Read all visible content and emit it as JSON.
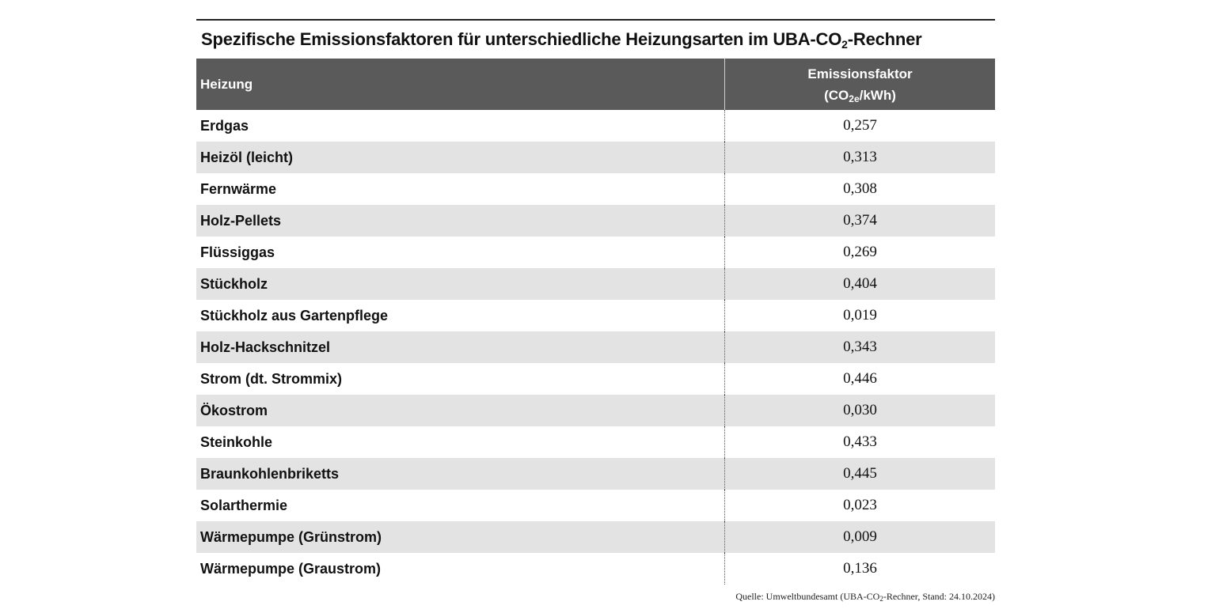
{
  "chart_data": {
    "type": "table",
    "title": "Spezifische Emissionsfaktoren für unterschiedliche Heizungsarten im UBA-CO₂-Rechner",
    "title_parts": {
      "pre": "Spezifische Emissionsfaktoren für unterschiedliche Heizungsarten im UBA-CO",
      "sub": "2",
      "post": "-Rechner"
    },
    "columns": {
      "name": "Heizung",
      "value_line1": "Emissionsfaktor",
      "value_unit_pre": "(CO",
      "value_unit_sub": "2e",
      "value_unit_post": "/kWh)"
    },
    "rows": [
      {
        "name": "Erdgas",
        "value": "0,257"
      },
      {
        "name": "Heizöl (leicht)",
        "value": "0,313"
      },
      {
        "name": "Fernwärme",
        "value": "0,308"
      },
      {
        "name": "Holz-Pellets",
        "value": "0,374"
      },
      {
        "name": "Flüssiggas",
        "value": "0,269"
      },
      {
        "name": "Stückholz",
        "value": "0,404"
      },
      {
        "name": "Stückholz aus Gartenpflege",
        "value": "0,019"
      },
      {
        "name": "Holz-Hackschnitzel",
        "value": "0,343"
      },
      {
        "name": "Strom (dt. Strommix)",
        "value": "0,446"
      },
      {
        "name": "Ökostrom",
        "value": "0,030"
      },
      {
        "name": "Steinkohle",
        "value": "0,433"
      },
      {
        "name": "Braunkohlenbriketts",
        "value": "0,445"
      },
      {
        "name": "Solarthermie",
        "value": "0,023"
      },
      {
        "name": "Wärmepumpe (Grünstrom)",
        "value": "0,009"
      },
      {
        "name": "Wärmepumpe (Graustrom)",
        "value": "0,136"
      }
    ],
    "source": {
      "pre": "Quelle: Umweltbundesamt (UBA-CO",
      "sub": "2",
      "post": "-Rechner, Stand: 24.10.2024)"
    }
  },
  "colors": {
    "header_bg": "#5a5a5a",
    "stripe_bg": "#e3e3e3"
  }
}
